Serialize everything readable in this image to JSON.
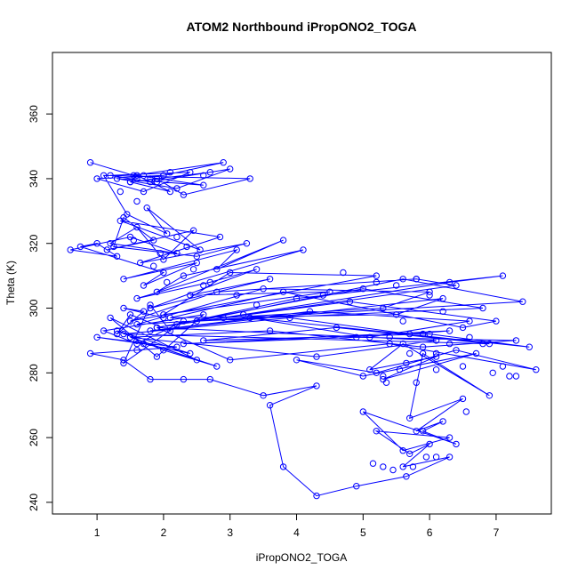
{
  "chart_data": {
    "type": "line",
    "title": "ATOM2 Northbound iPropONO2_TOGA",
    "xlabel": "iPropONO2_TOGA",
    "ylabel": "Theta (K)",
    "xlim": [
      0.33,
      7.83
    ],
    "ylim": [
      236.4,
      379.0
    ],
    "xticks": [
      1,
      2,
      3,
      4,
      5,
      6,
      7
    ],
    "yticks": [
      240,
      260,
      280,
      300,
      320,
      340,
      360
    ],
    "grid": false,
    "legend": "none",
    "marker": "open-circle",
    "color": "#0000ff",
    "series": [
      {
        "x": [
          0.9,
          1.55,
          2.9,
          2.0,
          1.0,
          1.7,
          2.4,
          1.2,
          1.8,
          3.0,
          2.2,
          1.3,
          2.6,
          1.6,
          2.1,
          1.5,
          2.7,
          1.9,
          2.3,
          3.3,
          1.1,
          1.45,
          2.05,
          1.75,
          2.55,
          1.35,
          2.85,
          1.65,
          3.25,
          2.5,
          1.25,
          1.4,
          1.85,
          1.15,
          2.45,
          2.0,
          1.6,
          1.2,
          2.2,
          1.5,
          0.6,
          1.3,
          1.0,
          0.75,
          2.0,
          1.7,
          2.5,
          1.4,
          3.1,
          2.8,
          3.8,
          1.9,
          2.3,
          4.1,
          1.6,
          2.7,
          3.4,
          1.8,
          3.6,
          2.4,
          4.5,
          2.0,
          3.0,
          5.2,
          1.5,
          2.8,
          5.8,
          6.4,
          2.2,
          4.0,
          7.1,
          6.3,
          3.2,
          1.9,
          5.0,
          6.8,
          2.5,
          4.4,
          5.6,
          7.4,
          1.6,
          3.5,
          6.0,
          5.3,
          2.9,
          4.8,
          7.0,
          6.5,
          3.8,
          2.1,
          5.5,
          6.2,
          1.8,
          4.2,
          6.6,
          5.1,
          3.3,
          7.5,
          6.0,
          2.6,
          4.6,
          6.9,
          1.4,
          3.9,
          5.7,
          6.3,
          2.3,
          4.9,
          7.3,
          5.9,
          3.6,
          1.5,
          4.3,
          6.1,
          1.9,
          3.0,
          5.4,
          7.6,
          6.4,
          5.2,
          4.0,
          5.0,
          6.7,
          5.3,
          6.1,
          5.1,
          5.6,
          6.9,
          5.9,
          5.7,
          6.5,
          5.8,
          6.2,
          5.9,
          6.4,
          5.0,
          5.6,
          6.3,
          5.2,
          5.7,
          6.0,
          5.6,
          6.3,
          5.65,
          4.9,
          4.3,
          3.8,
          3.6,
          4.3,
          3.5,
          2.7,
          2.3,
          1.8,
          1.4,
          0.9,
          1.6,
          2.2,
          1.0,
          1.7,
          2.4,
          1.3,
          2.0,
          2.8,
          1.5,
          2.5,
          1.2,
          1.9,
          2.6,
          1.1,
          1.6,
          2.3,
          1.4,
          1.8,
          2.1,
          1.5,
          1.3,
          1.7,
          1.4,
          2.0
        ],
        "y": [
          345,
          341,
          345,
          341,
          340,
          336,
          342,
          341,
          339,
          343,
          337,
          340,
          338,
          341,
          336,
          339,
          342,
          340,
          335,
          340,
          341,
          329,
          323,
          331,
          318,
          327,
          322,
          314,
          320,
          316,
          319,
          328,
          321,
          318,
          324,
          315,
          325,
          320,
          317,
          322,
          318,
          316,
          320,
          319,
          311,
          307,
          314,
          309,
          318,
          312,
          321,
          305,
          310,
          318,
          303,
          308,
          312,
          300,
          309,
          304,
          305,
          298,
          311,
          310,
          296,
          305,
          309,
          307,
          295,
          303,
          310,
          308,
          298,
          294,
          306,
          300,
          296,
          304,
          309,
          302,
          295,
          306,
          305,
          300,
          297,
          302,
          296,
          294,
          305,
          297,
          298,
          303,
          293,
          299,
          296,
          291,
          297,
          288,
          292,
          290,
          294,
          289,
          292,
          297,
          292,
          293,
          289,
          291,
          290,
          288,
          293,
          291,
          285,
          290,
          294,
          284,
          289,
          281,
          287,
          280,
          284,
          279,
          286,
          278,
          285,
          281,
          289,
          273,
          286,
          266,
          272,
          262,
          265,
          262,
          258,
          268,
          256,
          260,
          262,
          255,
          258,
          251,
          254,
          248,
          245,
          242,
          251,
          270,
          276,
          273,
          278,
          278,
          278,
          284,
          286,
          287,
          288,
          291,
          289,
          286,
          293,
          287,
          282,
          291,
          284,
          297,
          285,
          298,
          293,
          289,
          296,
          283,
          301,
          293,
          298,
          292,
          299,
          300,
          297
        ],
        "extra_markers": [
          [
            1.6,
            340
          ],
          [
            1.7,
            341
          ],
          [
            1.8,
            340
          ],
          [
            1.5,
            339
          ],
          [
            2.0,
            341
          ],
          [
            2.6,
            341
          ],
          [
            1.9,
            339
          ],
          [
            2.1,
            342
          ],
          [
            1.35,
            336
          ],
          [
            1.6,
            333
          ],
          [
            1.55,
            321
          ],
          [
            2.2,
            322
          ],
          [
            1.95,
            317
          ],
          [
            2.35,
            319
          ],
          [
            1.85,
            313
          ],
          [
            2.45,
            312
          ],
          [
            2.05,
            308
          ],
          [
            2.6,
            307
          ],
          [
            3.1,
            304
          ],
          [
            3.4,
            301
          ],
          [
            4.7,
            311
          ],
          [
            5.2,
            308
          ],
          [
            5.5,
            307
          ],
          [
            5.8,
            309
          ],
          [
            6.0,
            304
          ],
          [
            5.6,
            296
          ],
          [
            6.2,
            299
          ],
          [
            5.4,
            291
          ],
          [
            5.9,
            292
          ],
          [
            6.3,
            289
          ],
          [
            6.6,
            291
          ],
          [
            5.7,
            286
          ],
          [
            6.1,
            286
          ],
          [
            5.3,
            279
          ],
          [
            5.35,
            277
          ],
          [
            5.55,
            281
          ],
          [
            5.65,
            283
          ],
          [
            6.1,
            281
          ],
          [
            6.5,
            282
          ],
          [
            5.8,
            277
          ],
          [
            6.55,
            268
          ],
          [
            6.95,
            280
          ],
          [
            7.3,
            279
          ],
          [
            7.2,
            279
          ],
          [
            6.8,
            289
          ],
          [
            7.1,
            282
          ],
          [
            5.3,
            251
          ],
          [
            5.75,
            251
          ],
          [
            6.1,
            254
          ],
          [
            5.45,
            250
          ],
          [
            5.95,
            254
          ],
          [
            5.15,
            252
          ]
        ]
      }
    ]
  }
}
